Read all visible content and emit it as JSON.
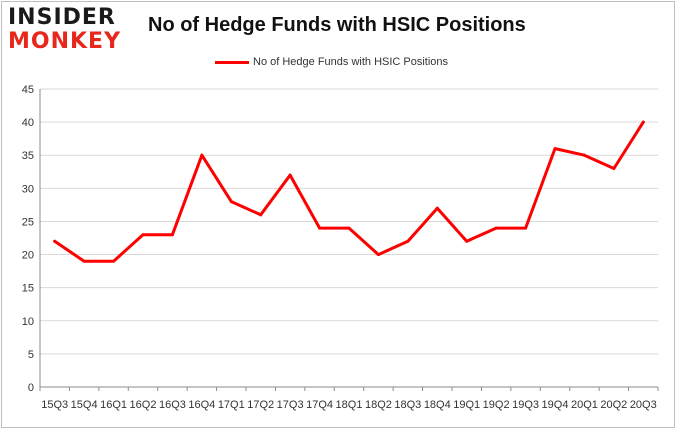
{
  "logo": {
    "line1": "INSIDER",
    "line2": "MONKEY"
  },
  "colors": {
    "series": "#ff0000",
    "grid": "#d9d9d9",
    "axis": "#8c8c8c",
    "logo_accent": "#e8271c"
  },
  "chart_data": {
    "type": "line",
    "title": "No of Hedge Funds with HSIC Positions",
    "legend_position": "top",
    "grid": true,
    "ylim": [
      0,
      45
    ],
    "yticks": [
      0,
      5,
      10,
      15,
      20,
      25,
      30,
      35,
      40,
      45
    ],
    "categories": [
      "15Q3",
      "15Q4",
      "16Q1",
      "16Q2",
      "16Q3",
      "16Q4",
      "17Q1",
      "17Q2",
      "17Q3",
      "17Q4",
      "18Q1",
      "18Q2",
      "18Q3",
      "18Q4",
      "19Q1",
      "19Q2",
      "19Q3",
      "19Q4",
      "20Q1",
      "20Q2",
      "20Q3"
    ],
    "series": [
      {
        "name": "No of Hedge Funds with HSIC Positions",
        "values": [
          22,
          19,
          19,
          23,
          23,
          35,
          28,
          26,
          32,
          24,
          24,
          20,
          22,
          27,
          22,
          24,
          24,
          36,
          35,
          33,
          40
        ]
      }
    ]
  }
}
